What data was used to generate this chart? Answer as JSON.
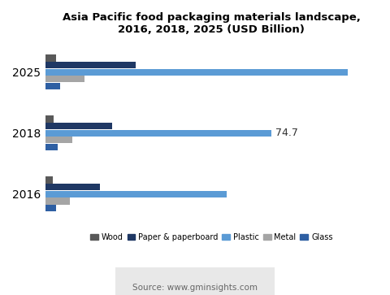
{
  "title": "Asia Pacific food packaging materials landscape,\n2016, 2018, 2025 (USD Billion)",
  "years": [
    "2025",
    "2018",
    "2016"
  ],
  "categories": [
    "Wood",
    "Paper & paperboard",
    "Plastic",
    "Metal",
    "Glass"
  ],
  "colors": [
    "#595959",
    "#1f3864",
    "#5b9bd5",
    "#a5a5a5",
    "#2e5fa3"
  ],
  "values": {
    "Wood": [
      3.5,
      2.8,
      2.5
    ],
    "Paper & paperboard": [
      30.0,
      22.0,
      18.0
    ],
    "Plastic": [
      100.0,
      74.7,
      60.0
    ],
    "Metal": [
      13.0,
      9.0,
      8.0
    ],
    "Glass": [
      5.0,
      4.0,
      3.5
    ]
  },
  "annotation_text": "74.7",
  "source_text": "Source: www.gminsights.com",
  "source_bg": "#e8e8e8",
  "xlim": [
    0,
    110
  ],
  "bar_height": 0.11,
  "bar_spacing": 0.005,
  "group_centers": [
    2.5,
    1.5,
    0.5
  ]
}
